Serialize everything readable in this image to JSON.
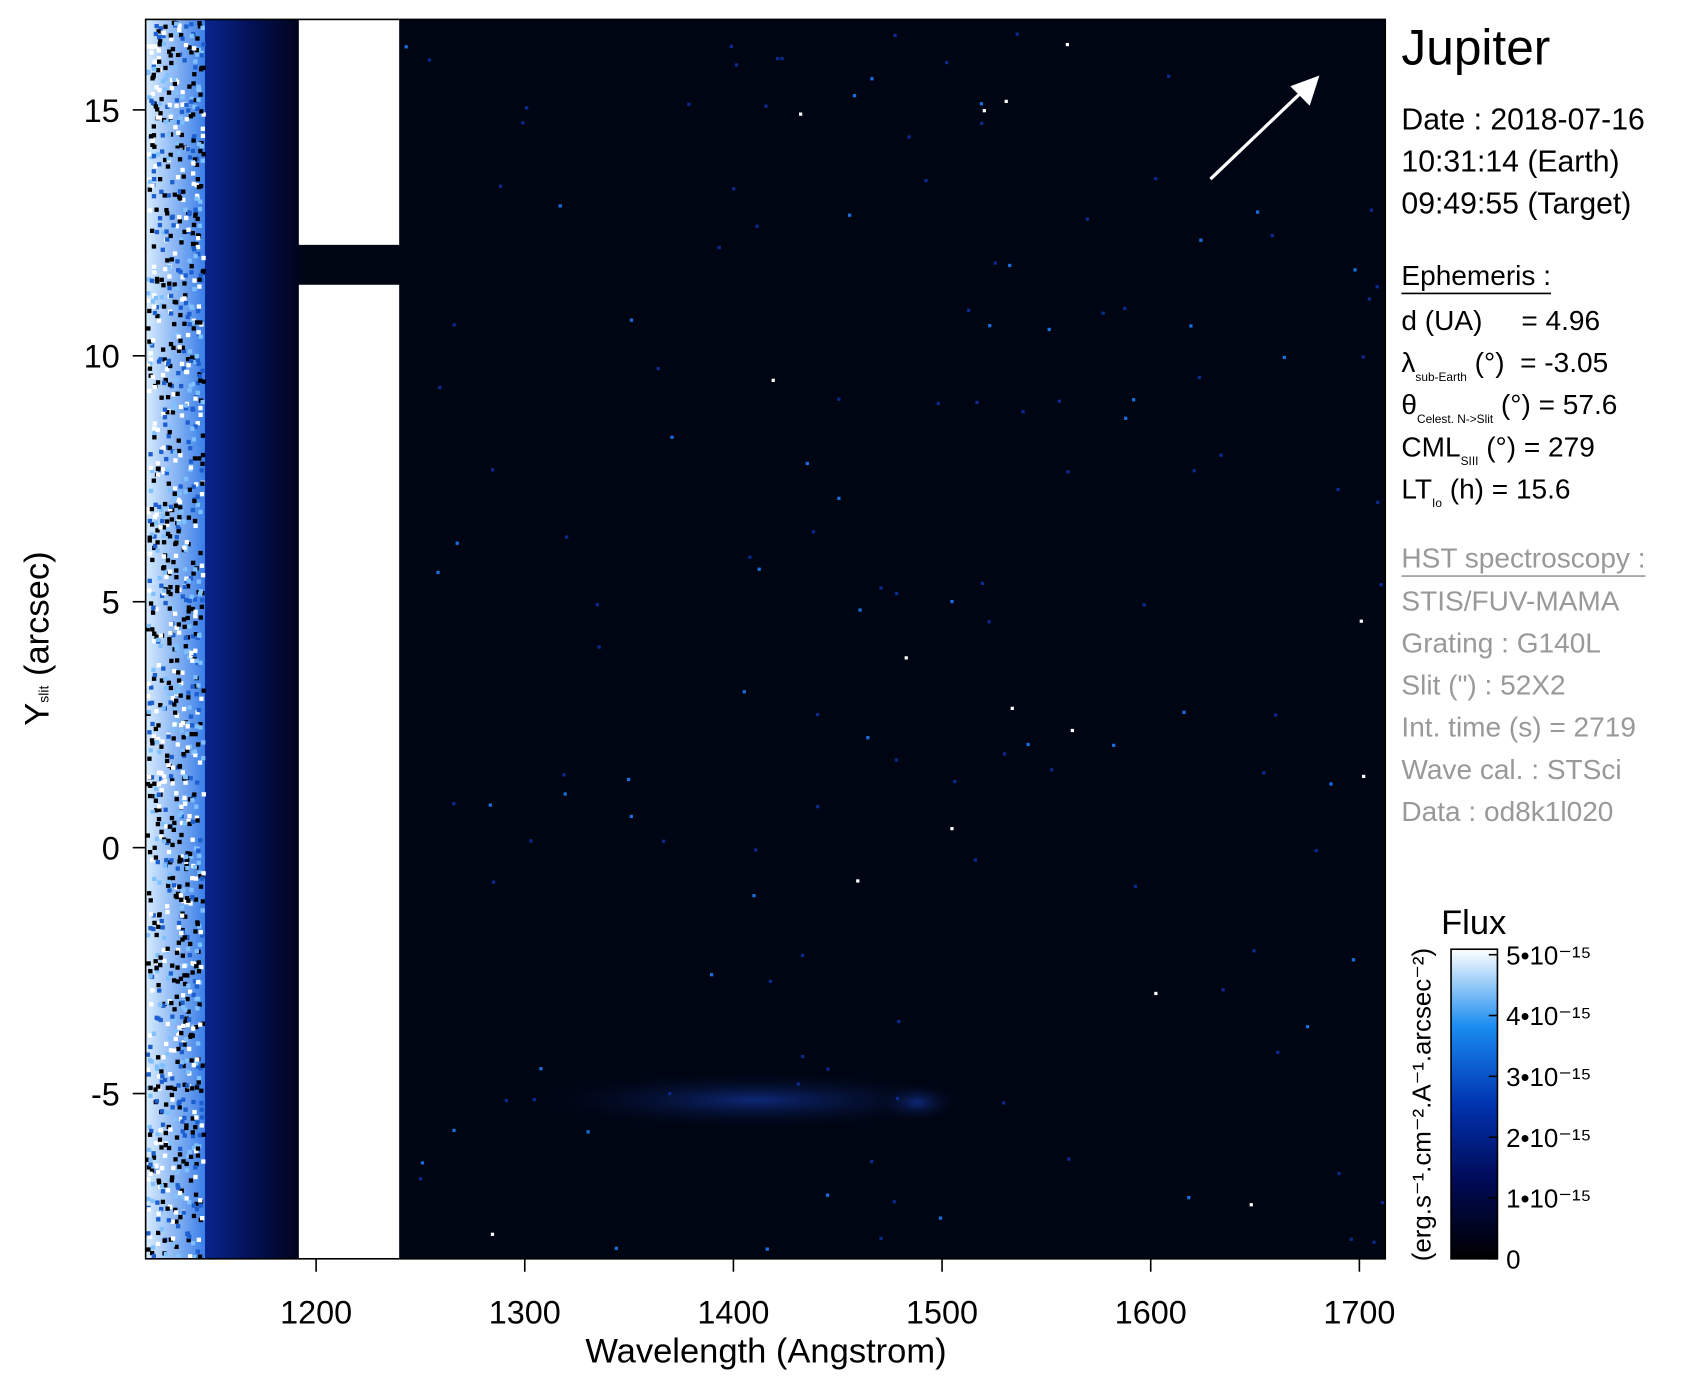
{
  "chart_data": {
    "type": "spectral-image",
    "xlabel": "Wavelength (Angstrom)",
    "ylabel": "Y",
    "ylabel_sub": "slit",
    "ylabel_rest": " (arcsec)",
    "xlim": [
      1118.3,
      1712.4
    ],
    "ylim": [
      -8.36,
      16.84
    ],
    "xticks": [
      1200,
      1300,
      1400,
      1500,
      1600,
      1700
    ],
    "yticks": [
      -5,
      0,
      5,
      10,
      15
    ],
    "colorbar": {
      "title": "Flux",
      "label": "(erg.s⁻¹.cm⁻².A⁻¹.arcsec⁻²)",
      "lim": [
        0,
        5.09e-15
      ],
      "ticks": [
        0,
        {
          "value": 1e-15,
          "label": "1•10⁻¹⁵"
        },
        {
          "value": 2e-15,
          "label": "2•10⁻¹⁵"
        },
        {
          "value": 3e-15,
          "label": "3•10⁻¹⁵"
        },
        {
          "value": 4e-15,
          "label": "4•10⁻¹⁵"
        },
        {
          "value": 5e-15,
          "label": "5•10⁻¹⁵"
        }
      ],
      "colormap": [
        "#000000",
        "#000a55",
        "#0033b0",
        "#1a8cf0",
        "#ffffff"
      ]
    }
  },
  "panel": {
    "title": "Jupiter",
    "date": [
      "Date : 2018-07-16",
      "10:31:14 (Earth)",
      "09:49:55 (Target)"
    ],
    "ephemeris_title": "Ephemeris :",
    "ephemeris": [
      {
        "symbol": "d (UA)     = 4.96"
      },
      {
        "symbol": "λ",
        "sub": "sub-Earth",
        "rest": " (°)  = -3.05"
      },
      {
        "symbol": "θ",
        "sub": "Celest. N->Slit",
        "rest": " (°) = 57.6"
      },
      {
        "symbol": "CML",
        "sub": "SIII",
        "rest": " (°) = 279"
      },
      {
        "symbol": "LT",
        "sub": "Io",
        "rest": " (h) = 15.6"
      }
    ],
    "hst_title": "HST spectroscopy :",
    "hst": [
      "STIS/FUV-MAMA",
      "Grating : G140L",
      "Slit (\") : 52X2",
      "Int. time (s) = 2719",
      "Wave cal. : STSci",
      "Data : od8k1l020"
    ]
  }
}
